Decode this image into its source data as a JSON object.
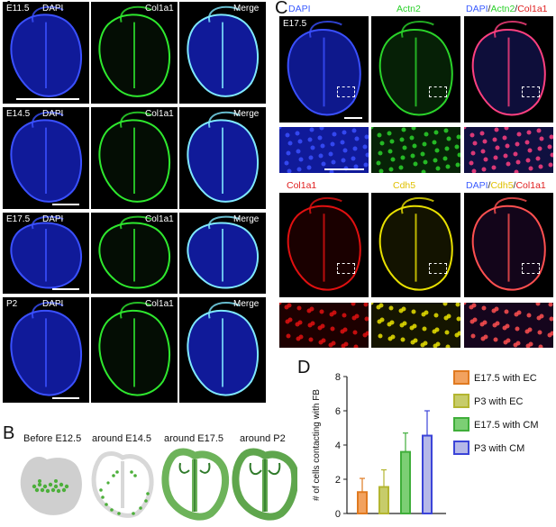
{
  "panel_letters": {
    "A": "A",
    "B": "B",
    "C": "C",
    "D": "D"
  },
  "panelA": {
    "rows": [
      {
        "stage": "E11.5",
        "channels": [
          "DAPI",
          "Col1a1",
          "Merge"
        ]
      },
      {
        "stage": "E14.5",
        "channels": [
          "DAPI",
          "Col1a1",
          "Merge"
        ]
      },
      {
        "stage": "E17.5",
        "channels": [
          "DAPI",
          "Col1a1",
          "Merge"
        ]
      },
      {
        "stage": "P2",
        "channels": [
          "DAPI",
          "Col1a1",
          "Merge"
        ]
      }
    ]
  },
  "panelB": {
    "stages": [
      "Before E12.5",
      "around E14.5",
      "around E17.5",
      "around P2"
    ]
  },
  "panelC": {
    "stage": "E17.5",
    "top_headers": [
      {
        "parts": [
          {
            "text": "DAPI",
            "color": "#3b5cff"
          }
        ]
      },
      {
        "parts": [
          {
            "text": "Actn2",
            "color": "#2bd12b"
          }
        ]
      },
      {
        "parts": [
          {
            "text": "DAPI",
            "color": "#3b5cff"
          },
          {
            "text": "/",
            "color": "#222222"
          },
          {
            "text": "Actn2",
            "color": "#2bd12b"
          },
          {
            "text": "/",
            "color": "#222222"
          },
          {
            "text": "Col1a1",
            "color": "#e02020"
          }
        ]
      }
    ],
    "bottom_headers": [
      {
        "parts": [
          {
            "text": "Col1a1",
            "color": "#e02020"
          }
        ]
      },
      {
        "parts": [
          {
            "text": "Cdh5",
            "color": "#e0c000"
          }
        ]
      },
      {
        "parts": [
          {
            "text": "DAPI",
            "color": "#3b5cff"
          },
          {
            "text": "/",
            "color": "#222222"
          },
          {
            "text": "Cdh5",
            "color": "#e0c000"
          },
          {
            "text": "/",
            "color": "#222222"
          },
          {
            "text": "Col1a1",
            "color": "#e02020"
          }
        ]
      }
    ]
  },
  "colors": {
    "dapi": "#1a2cff",
    "col1a1": "#2ee82e",
    "actn2": "#2ad42a",
    "red": "#e01010",
    "yellow": "#e8e000",
    "heart_green": "#6db35a",
    "heart_dark": "#2f7a2a",
    "heart_gray": "#cfcfcf"
  },
  "chart_data": {
    "type": "bar",
    "ylabel": "# of cells contacting with FB",
    "ylim": [
      0,
      8
    ],
    "yticks": [
      0,
      2,
      4,
      6,
      8
    ],
    "series": [
      {
        "name": "E17.5 with EC",
        "value": 1.25,
        "error": 0.8,
        "fill": "#f2a25f",
        "stroke": "#e07a20"
      },
      {
        "name": "P3 with EC",
        "value": 1.55,
        "error": 1.0,
        "fill": "#c7cc6a",
        "stroke": "#b3b530"
      },
      {
        "name": "E17.5 with CM",
        "value": 3.6,
        "error": 1.1,
        "fill": "#7ccf74",
        "stroke": "#3fae3a"
      },
      {
        "name": "P3 with CM",
        "value": 4.55,
        "error": 1.45,
        "fill": "#b5b8e8",
        "stroke": "#3b44d8"
      }
    ]
  }
}
